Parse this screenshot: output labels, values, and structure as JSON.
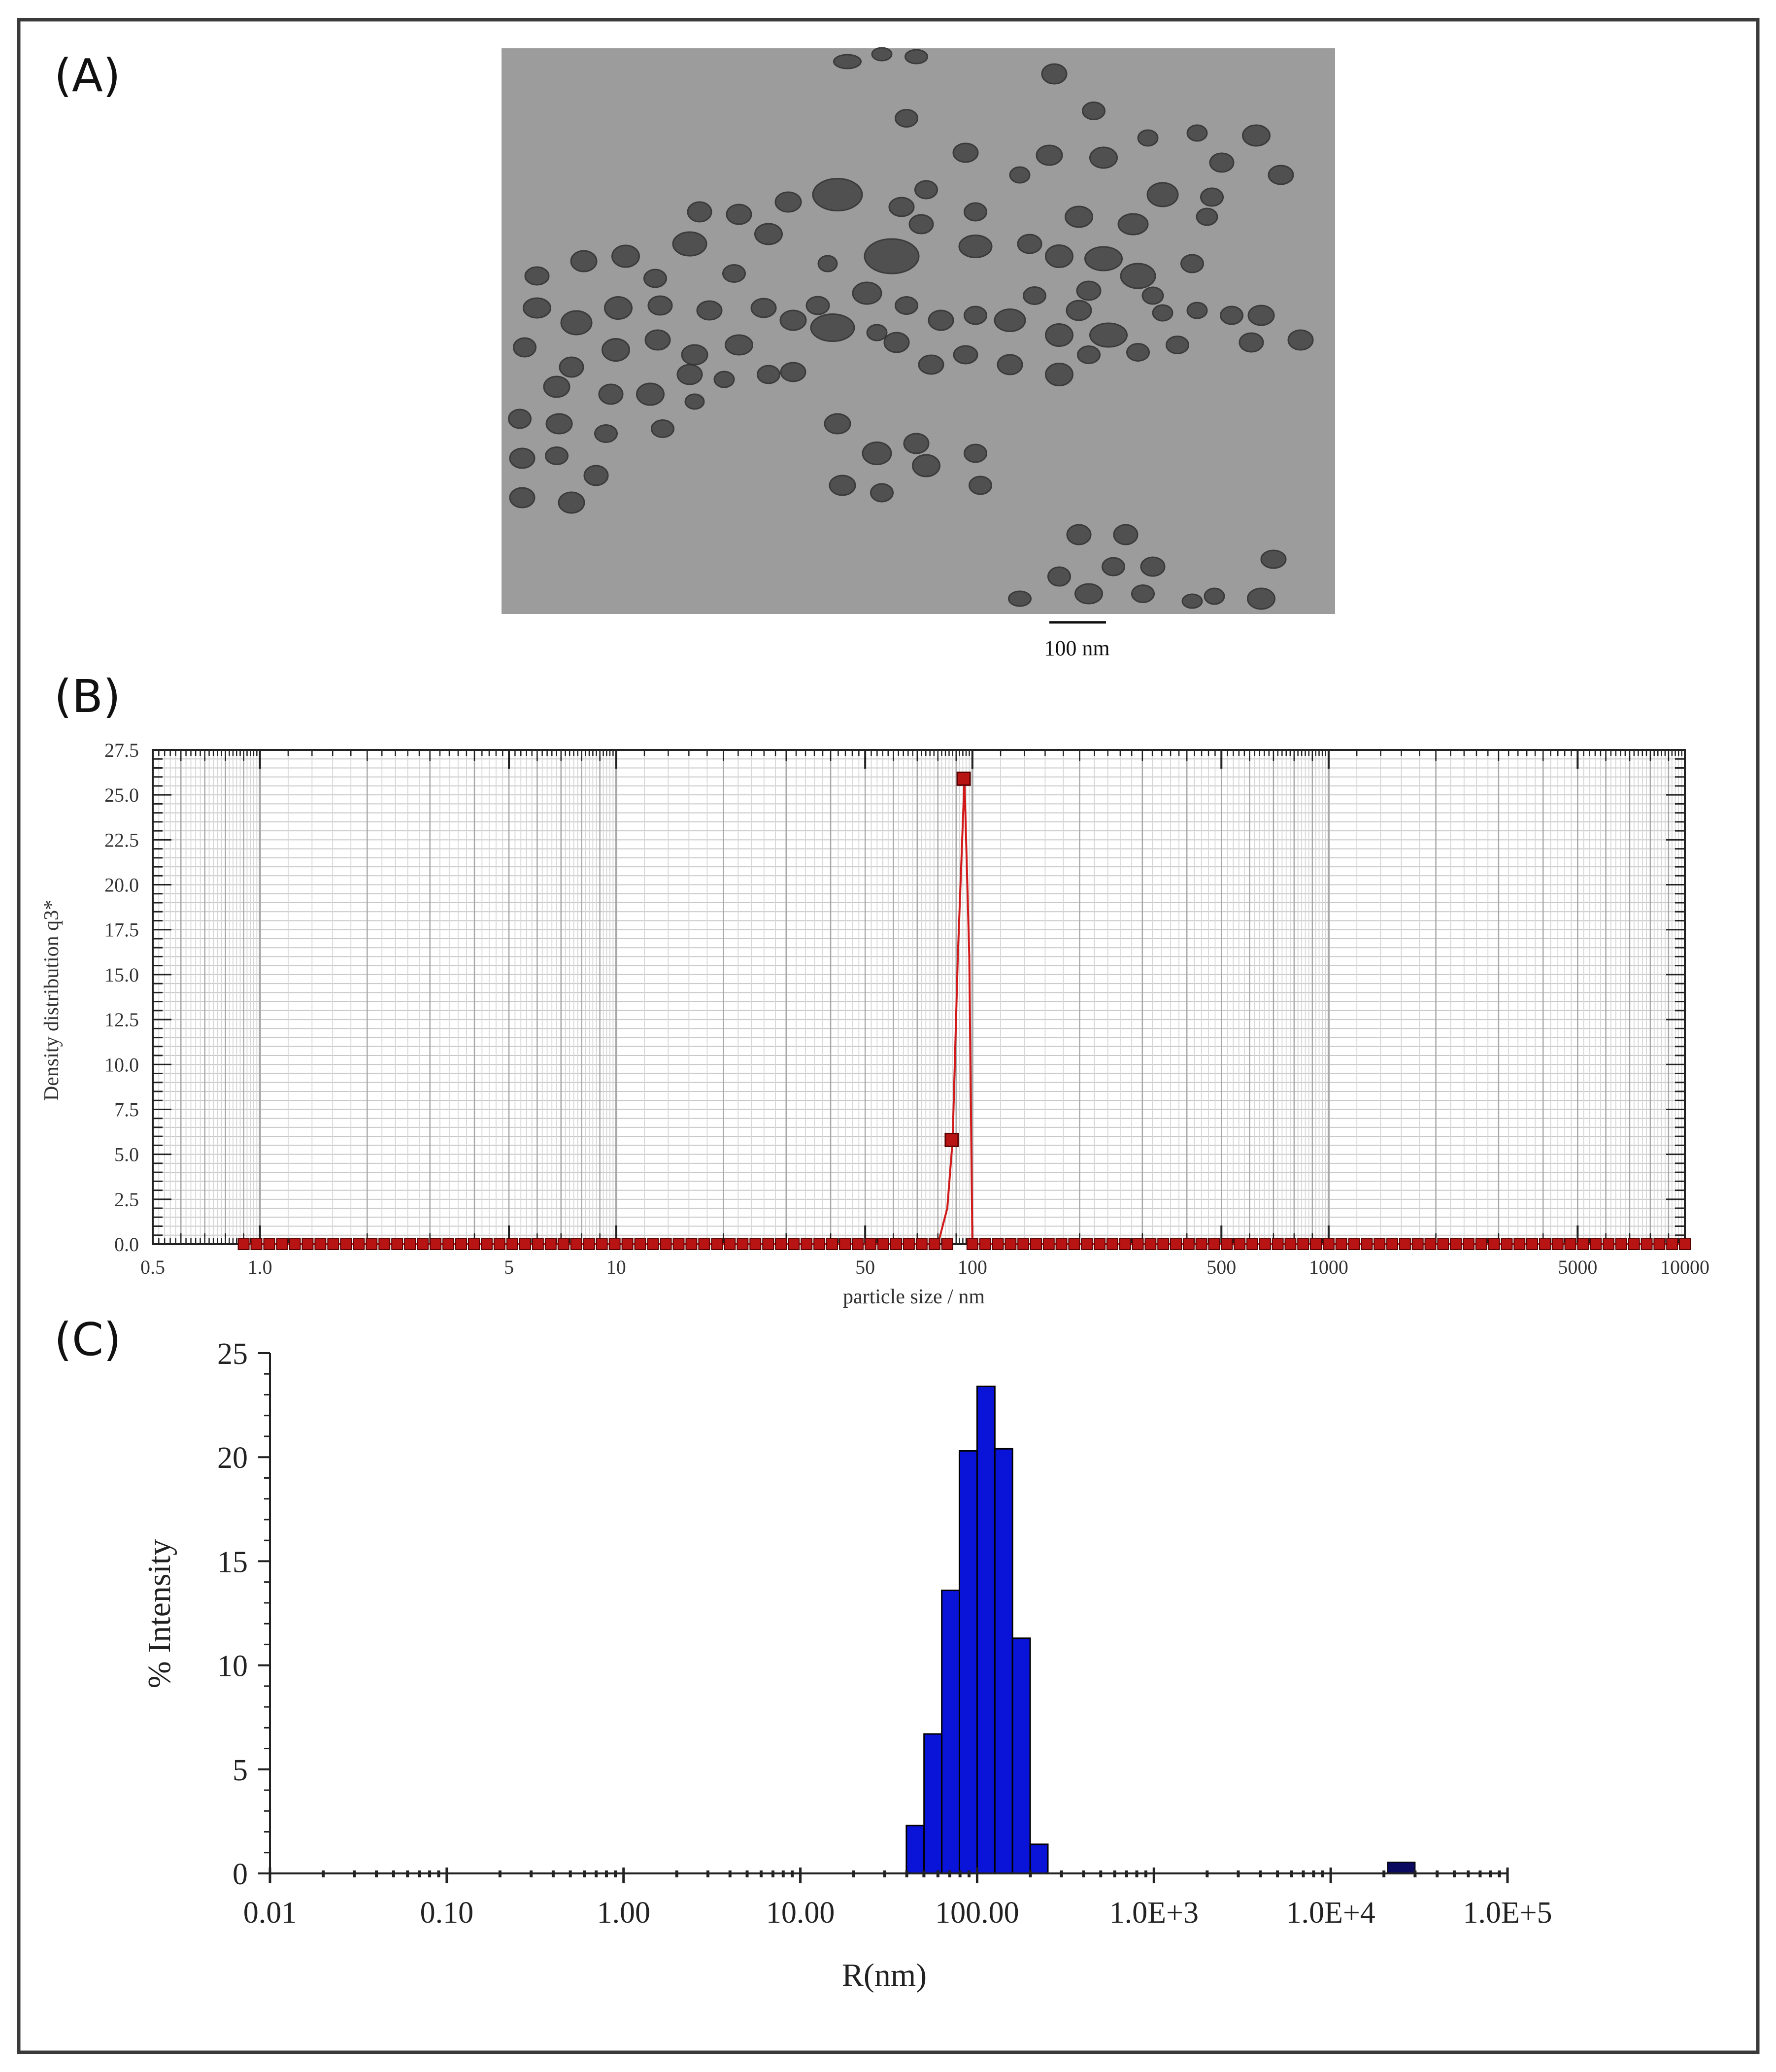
{
  "panels": {
    "a": {
      "label": "(A)",
      "scale_bar_label": "100 nm"
    },
    "b": {
      "label": "(B)"
    },
    "c": {
      "label": "(C)"
    }
  },
  "colors": {
    "tem_background": "#9a9a9a",
    "particle": "#4a4a4a",
    "dls_curve": "#d21a1a",
    "dls_marker": "#b81414",
    "histogram": "#0a14d8"
  },
  "chart_data": [
    {
      "id": "B",
      "type": "line",
      "x_scale": "log",
      "xlabel": "particle size / nm",
      "ylabel": "Density distribution q3*",
      "xlim": [
        0.5,
        10000
      ],
      "ylim": [
        0,
        27.5
      ],
      "grid": true,
      "x_ticks": [
        0.5,
        1.0,
        5,
        10,
        50,
        100,
        500,
        1000,
        5000,
        10000
      ],
      "x_tick_labels": [
        "0.5",
        "1.0",
        "5",
        "10",
        "50",
        "100",
        "500",
        "1000",
        "5000",
        "10000"
      ],
      "y_ticks": [
        0,
        2.5,
        5,
        7.5,
        10,
        12.5,
        15,
        17.5,
        20,
        22.5,
        25,
        27.5
      ],
      "y_tick_labels": [
        "0.0",
        "2.5",
        "5.0",
        "7.5",
        "10.0",
        "12.5",
        "15.0",
        "17.5",
        "20.0",
        "22.5",
        "25.0",
        "27.5"
      ],
      "series": [
        {
          "name": "q3*",
          "x": [
            0.9,
            80,
            85,
            88,
            91,
            95,
            98,
            100,
            10000
          ],
          "y": [
            0,
            0,
            2,
            5.8,
            16,
            25.9,
            16,
            0,
            0
          ]
        }
      ],
      "highlighted_points": [
        {
          "x": 87.5,
          "y": 5.8
        },
        {
          "x": 94.5,
          "y": 25.9
        }
      ]
    },
    {
      "id": "C",
      "type": "bar",
      "x_scale": "log",
      "xlabel": "R(nm)",
      "ylabel": "% Intensity",
      "xlim": [
        0.01,
        100000
      ],
      "ylim": [
        0,
        25
      ],
      "x_ticks": [
        0.01,
        0.1,
        1,
        10,
        100,
        1000,
        10000,
        100000
      ],
      "x_tick_labels": [
        "0.01",
        "0.10",
        "1.00",
        "10.00",
        "100.00",
        "1.0E+3",
        "1.0E+4",
        "1.0E+5"
      ],
      "y_ticks": [
        0,
        5,
        10,
        15,
        20,
        25
      ],
      "y_tick_labels": [
        "0",
        "5",
        "10",
        "15",
        "20",
        "25"
      ],
      "bin_edges": [
        39.8,
        50.1,
        63.1,
        79.4,
        100,
        125.9,
        158.5,
        199.5,
        251.2
      ],
      "values": [
        2.3,
        6.7,
        13.6,
        20.3,
        23.4,
        20.4,
        11.3,
        1.4
      ],
      "minor_bin": {
        "from": 21000,
        "to": 30000,
        "value": 0.35
      }
    }
  ]
}
